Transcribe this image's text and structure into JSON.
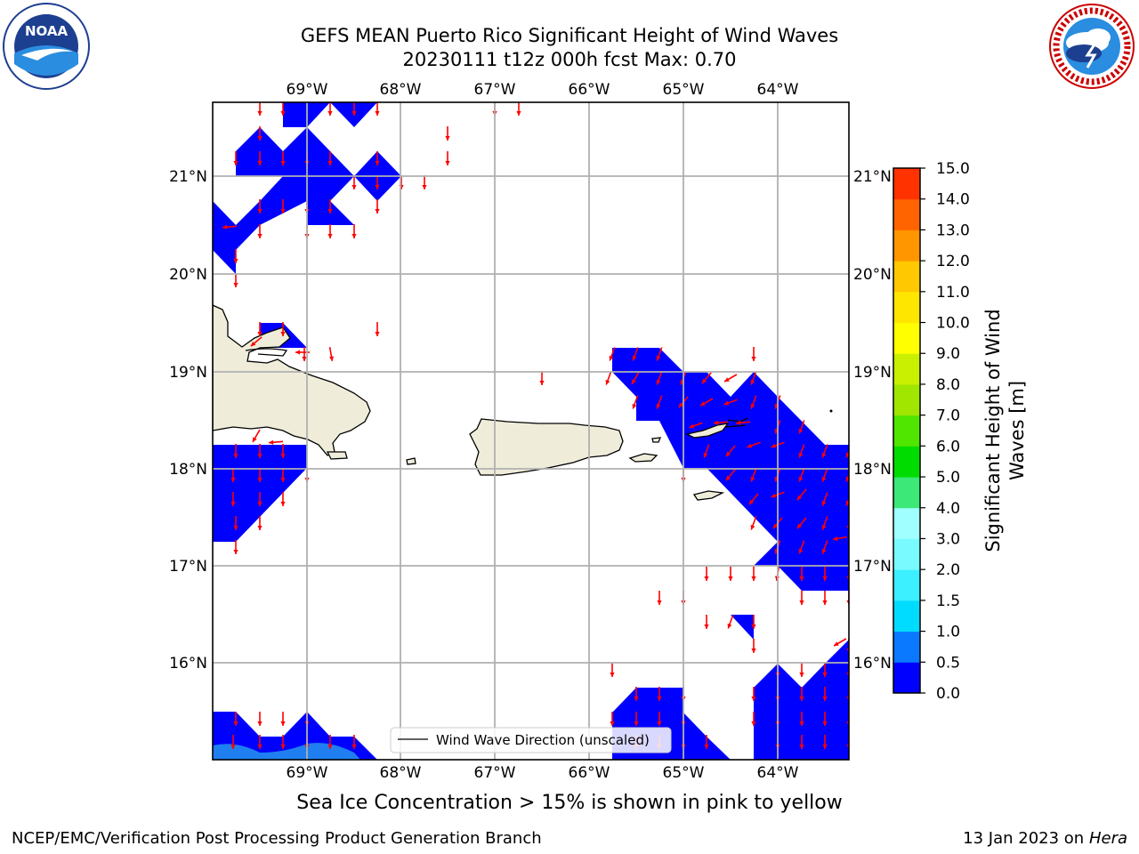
{
  "header": {
    "title_line1": "GEFS MEAN Puerto Rico Significant Height of Wind Waves",
    "title_line2": "20230111 t12z 000h fcst   Max: 0.70"
  },
  "logos": {
    "noaa_text": "NOAA",
    "noaa_ring": "NATIONAL OCEANIC AND ATMOSPHERIC ADMINISTRATION · U.S. DEPARTMENT OF COMMERCE",
    "nws_ring": "NATIONAL WEATHER SERVICE"
  },
  "map": {
    "lon_labels": [
      "69°W",
      "68°W",
      "67°W",
      "66°W",
      "65°W",
      "64°W"
    ],
    "lat_labels": [
      "21°N",
      "20°N",
      "19°N",
      "18°N",
      "17°N",
      "16°N"
    ],
    "legend_label": "Wind Wave Direction (unscaled)",
    "land_color": "#efedda",
    "water_color": "#ffffff",
    "wave_fill_color": "#0000ff",
    "shelf_color": "#1f7ff0",
    "arrow_color": "#ff0000"
  },
  "colorbar": {
    "label_line1": "Significant Height of Wind",
    "label_line2": "Waves [m]",
    "ticks": [
      "0.0",
      "0.5",
      "1.0",
      "1.5",
      "2.0",
      "3.0",
      "4.0",
      "5.0",
      "6.0",
      "7.0",
      "8.0",
      "9.0",
      "10.0",
      "11.0",
      "12.0",
      "13.0",
      "14.0",
      "15.0"
    ],
    "colors": [
      "#0000ff",
      "#0a78ff",
      "#00dcff",
      "#3cf0ff",
      "#78faff",
      "#a0ffff",
      "#3ce878",
      "#00dc00",
      "#50e600",
      "#a0e600",
      "#c8f000",
      "#ffff00",
      "#ffe600",
      "#ffc800",
      "#ff9600",
      "#ff6400",
      "#ff3200",
      "#ff0000"
    ]
  },
  "footer": {
    "note": "Sea Ice Concentration > 15% is shown in pink to yellow",
    "left": "NCEP/EMC/Verification Post Processing Product Generation Branch",
    "right_date": "13 Jan 2023 on ",
    "right_machine": "Hera"
  }
}
